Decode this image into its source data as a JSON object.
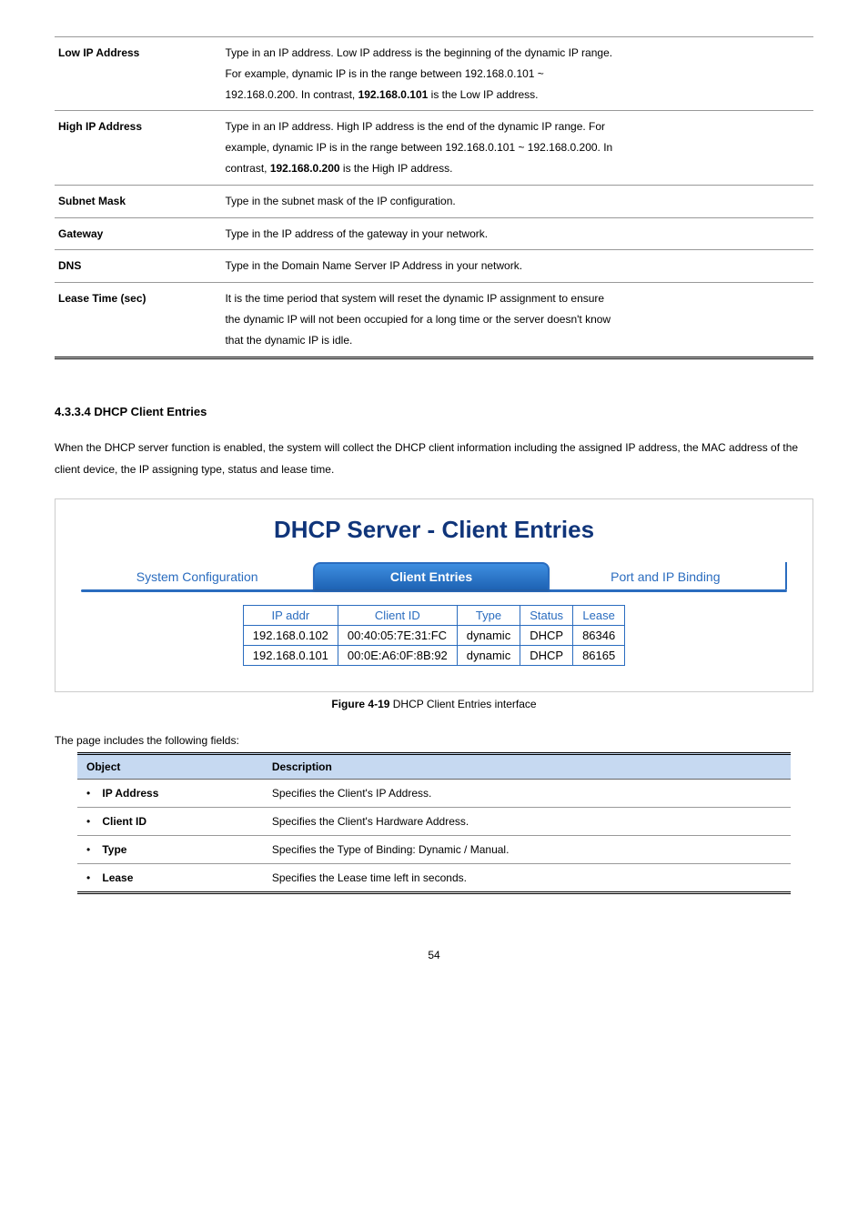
{
  "config_rows": [
    {
      "label": "Low IP Address",
      "desc_lines": [
        "Type in an IP address. Low IP address is the beginning of the dynamic IP range.",
        "For example, dynamic IP is in the range between 192.168.0.101 ~",
        "192.168.0.200. In contrast, 192.168.0.101 is the Low IP address."
      ],
      "inline_bold_index": 2,
      "inline_bold_text": "192.168.0.101",
      "inline_before": "192.168.0.200. In contrast, ",
      "inline_after": " is the Low IP address."
    },
    {
      "label": "High IP Address",
      "desc_lines": [
        "Type in an IP address. High IP address is the end of the dynamic IP range. For",
        "example, dynamic IP is in the range between 192.168.0.101 ~ 192.168.0.200. In",
        "contrast, 192.168.0.200 is the High IP address."
      ],
      "inline_bold_index": 2,
      "inline_bold_text": "192.168.0.200",
      "inline_before": "contrast, ",
      "inline_after": " is the High IP address."
    },
    {
      "label": "Subnet Mask",
      "desc_lines": [
        "Type in the subnet mask of the IP configuration."
      ]
    },
    {
      "label": "Gateway",
      "desc_lines": [
        "Type in the IP address of the gateway in your network."
      ]
    },
    {
      "label": "DNS",
      "desc_lines": [
        "Type in the Domain Name Server IP Address in your network."
      ]
    },
    {
      "label": "Lease Time (sec)",
      "desc_lines": [
        "It is the time period that system will reset the dynamic IP assignment to ensure",
        "the dynamic IP will not been occupied for a long time or the server doesn't know",
        "that the dynamic IP is idle."
      ]
    }
  ],
  "section_title": "4.3.3.4 DHCP Client Entries",
  "section_intro": "When the DHCP server function is enabled, the system will collect the DHCP client information including the assigned IP address, the MAC address of the client device, the IP assigning type, status and lease time.",
  "panel": {
    "title": "DHCP Server - Client Entries",
    "title_color": "#10357a",
    "tabs": {
      "left": "System Configuration",
      "center": "Client Entries",
      "right": "Port and IP Binding",
      "inactive_color": "#2a6cbf",
      "active_bg_start": "#3e8ee0",
      "active_bg_end": "#1e63b4",
      "active_border": "#2a6cbf",
      "rule_color": "#2a6cbf"
    },
    "table": {
      "headers": [
        "IP addr",
        "Client ID",
        "Type",
        "Status",
        "Lease"
      ],
      "header_color": "#2a6cbf",
      "border_color": "#2a6cbf",
      "rows": [
        [
          "192.168.0.102",
          "00:40:05:7E:31:FC",
          "dynamic",
          "DHCP",
          "86346"
        ],
        [
          "192.168.0.101",
          "00:0E:A6:0F:8B:92",
          "dynamic",
          "DHCP",
          "86165"
        ]
      ]
    }
  },
  "fig_caption_prefix": "Figure 4-19",
  "fig_caption_rest": " DHCP Client Entries interface",
  "fields_intro": "The page includes the following fields:",
  "fields_header": {
    "object": "Object",
    "description": "Description"
  },
  "fields_header_bg": "#c6d9f1",
  "fields_rows": [
    {
      "object": "IP Address",
      "desc": "Specifies the Client's IP Address."
    },
    {
      "object": "Client ID",
      "desc": "Specifies the Client's Hardware Address."
    },
    {
      "object": "Type",
      "desc": "Specifies the Type of Binding: Dynamic / Manual."
    },
    {
      "object": "Lease",
      "desc": "Specifies the Lease time left in seconds."
    }
  ],
  "pagenum": "54"
}
